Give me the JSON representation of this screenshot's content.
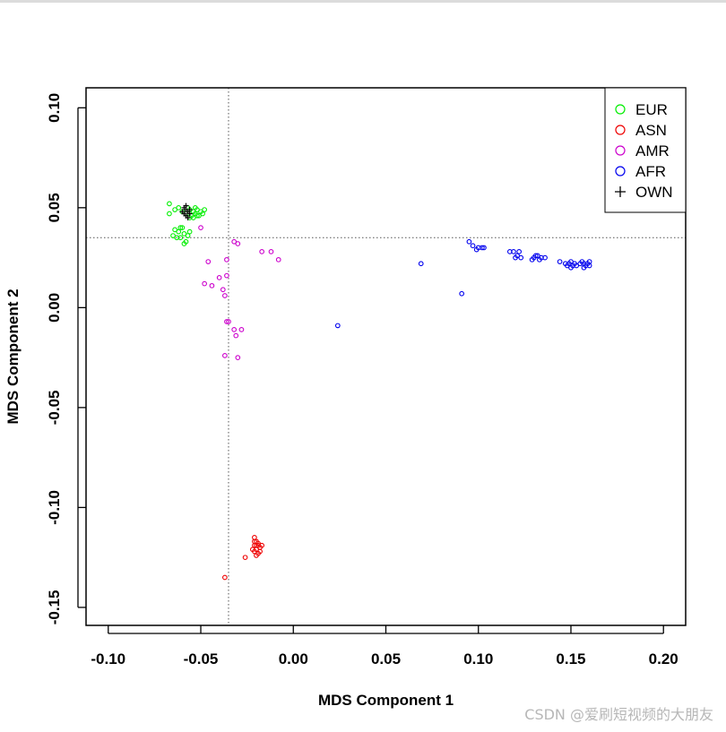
{
  "chart_data": {
    "type": "scatter",
    "xlabel": "MDS Component 1",
    "ylabel": "MDS Component 2",
    "xlim": [
      -0.112,
      0.212
    ],
    "ylim": [
      -0.159,
      0.11
    ],
    "x_ticks": [
      -0.1,
      -0.05,
      0.0,
      0.05,
      0.1,
      0.15,
      0.2
    ],
    "x_tick_labels": [
      "-0.10",
      "-0.05",
      "0.00",
      "0.05",
      "0.10",
      "0.15",
      "0.20"
    ],
    "y_ticks": [
      0.1,
      0.05,
      0.0,
      -0.05,
      -0.1,
      -0.15
    ],
    "y_tick_labels": [
      "0.10",
      "0.05",
      "0.00",
      "-0.05",
      "-0.10",
      "-0.15"
    ],
    "reference_lines": {
      "vertical_x": -0.035,
      "horizontal_y": 0.035
    },
    "legend_position": "top-right",
    "series": [
      {
        "name": "EUR",
        "color": "#00ee00",
        "marker": "circle",
        "points": [
          [
            -0.067,
            0.052
          ],
          [
            -0.067,
            0.047
          ],
          [
            -0.064,
            0.049
          ],
          [
            -0.062,
            0.05
          ],
          [
            -0.06,
            0.048
          ],
          [
            -0.058,
            0.047
          ],
          [
            -0.056,
            0.049
          ],
          [
            -0.055,
            0.046
          ],
          [
            -0.054,
            0.048
          ],
          [
            -0.053,
            0.047
          ],
          [
            -0.052,
            0.049
          ],
          [
            -0.051,
            0.046
          ],
          [
            -0.05,
            0.048
          ],
          [
            -0.049,
            0.047
          ],
          [
            -0.048,
            0.049
          ],
          [
            -0.056,
            0.045
          ],
          [
            -0.054,
            0.045
          ],
          [
            -0.052,
            0.046
          ],
          [
            -0.057,
            0.05
          ],
          [
            -0.053,
            0.05
          ],
          [
            -0.065,
            0.036
          ],
          [
            -0.064,
            0.039
          ],
          [
            -0.062,
            0.038
          ],
          [
            -0.061,
            0.035
          ],
          [
            -0.06,
            0.04
          ],
          [
            -0.059,
            0.037
          ],
          [
            -0.058,
            0.033
          ],
          [
            -0.057,
            0.036
          ],
          [
            -0.056,
            0.038
          ],
          [
            -0.059,
            0.032
          ],
          [
            -0.061,
            0.04
          ],
          [
            -0.063,
            0.035
          ]
        ]
      },
      {
        "name": "ASN",
        "color": "#ee0000",
        "marker": "circle",
        "points": [
          [
            -0.021,
            -0.115
          ],
          [
            -0.02,
            -0.117
          ],
          [
            -0.021,
            -0.119
          ],
          [
            -0.019,
            -0.119
          ],
          [
            -0.02,
            -0.121
          ],
          [
            -0.018,
            -0.12
          ],
          [
            -0.021,
            -0.122
          ],
          [
            -0.019,
            -0.123
          ],
          [
            -0.02,
            -0.124
          ],
          [
            -0.018,
            -0.122
          ],
          [
            -0.019,
            -0.118
          ],
          [
            -0.022,
            -0.121
          ],
          [
            -0.017,
            -0.119
          ],
          [
            -0.021,
            -0.117
          ],
          [
            -0.02,
            -0.119
          ],
          [
            -0.026,
            -0.125
          ],
          [
            -0.037,
            -0.135
          ]
        ]
      },
      {
        "name": "AMR",
        "color": "#cc00cc",
        "marker": "circle",
        "points": [
          [
            -0.05,
            0.04
          ],
          [
            -0.032,
            0.033
          ],
          [
            -0.03,
            0.032
          ],
          [
            -0.017,
            0.028
          ],
          [
            -0.012,
            0.028
          ],
          [
            -0.008,
            0.024
          ],
          [
            -0.046,
            0.023
          ],
          [
            -0.036,
            0.024
          ],
          [
            -0.036,
            0.016
          ],
          [
            -0.04,
            0.015
          ],
          [
            -0.048,
            0.012
          ],
          [
            -0.044,
            0.011
          ],
          [
            -0.038,
            0.009
          ],
          [
            -0.037,
            0.006
          ],
          [
            -0.036,
            -0.007
          ],
          [
            -0.035,
            -0.007
          ],
          [
            -0.032,
            -0.011
          ],
          [
            -0.028,
            -0.011
          ],
          [
            -0.031,
            -0.014
          ],
          [
            -0.037,
            -0.024
          ],
          [
            -0.03,
            -0.025
          ]
        ]
      },
      {
        "name": "AFR",
        "color": "#0000ee",
        "marker": "circle",
        "points": [
          [
            0.024,
            -0.009
          ],
          [
            0.069,
            0.022
          ],
          [
            0.091,
            0.007
          ],
          [
            0.095,
            0.033
          ],
          [
            0.097,
            0.031
          ],
          [
            0.099,
            0.029
          ],
          [
            0.1,
            0.03
          ],
          [
            0.102,
            0.03
          ],
          [
            0.103,
            0.03
          ],
          [
            0.117,
            0.028
          ],
          [
            0.119,
            0.028
          ],
          [
            0.12,
            0.025
          ],
          [
            0.121,
            0.026
          ],
          [
            0.122,
            0.028
          ],
          [
            0.123,
            0.025
          ],
          [
            0.129,
            0.024
          ],
          [
            0.13,
            0.025
          ],
          [
            0.131,
            0.026
          ],
          [
            0.132,
            0.026
          ],
          [
            0.133,
            0.024
          ],
          [
            0.134,
            0.025
          ],
          [
            0.136,
            0.025
          ],
          [
            0.144,
            0.023
          ],
          [
            0.147,
            0.022
          ],
          [
            0.148,
            0.021
          ],
          [
            0.149,
            0.022
          ],
          [
            0.15,
            0.02
          ],
          [
            0.15,
            0.023
          ],
          [
            0.151,
            0.021
          ],
          [
            0.152,
            0.022
          ],
          [
            0.153,
            0.021
          ],
          [
            0.155,
            0.022
          ],
          [
            0.156,
            0.023
          ],
          [
            0.157,
            0.02
          ],
          [
            0.157,
            0.022
          ],
          [
            0.158,
            0.021
          ],
          [
            0.159,
            0.022
          ],
          [
            0.16,
            0.021
          ],
          [
            0.16,
            0.023
          ]
        ]
      },
      {
        "name": "OWN",
        "color": "#000000",
        "marker": "plus",
        "points": [
          [
            -0.059,
            0.05
          ],
          [
            -0.058,
            0.049
          ],
          [
            -0.057,
            0.048
          ],
          [
            -0.056,
            0.049
          ],
          [
            -0.059,
            0.047
          ],
          [
            -0.058,
            0.046
          ],
          [
            -0.057,
            0.045
          ],
          [
            -0.06,
            0.048
          ],
          [
            -0.056,
            0.047
          ],
          [
            -0.058,
            0.051
          ]
        ]
      }
    ]
  },
  "watermark": "CSDN @爱刷短视频的大朋友"
}
